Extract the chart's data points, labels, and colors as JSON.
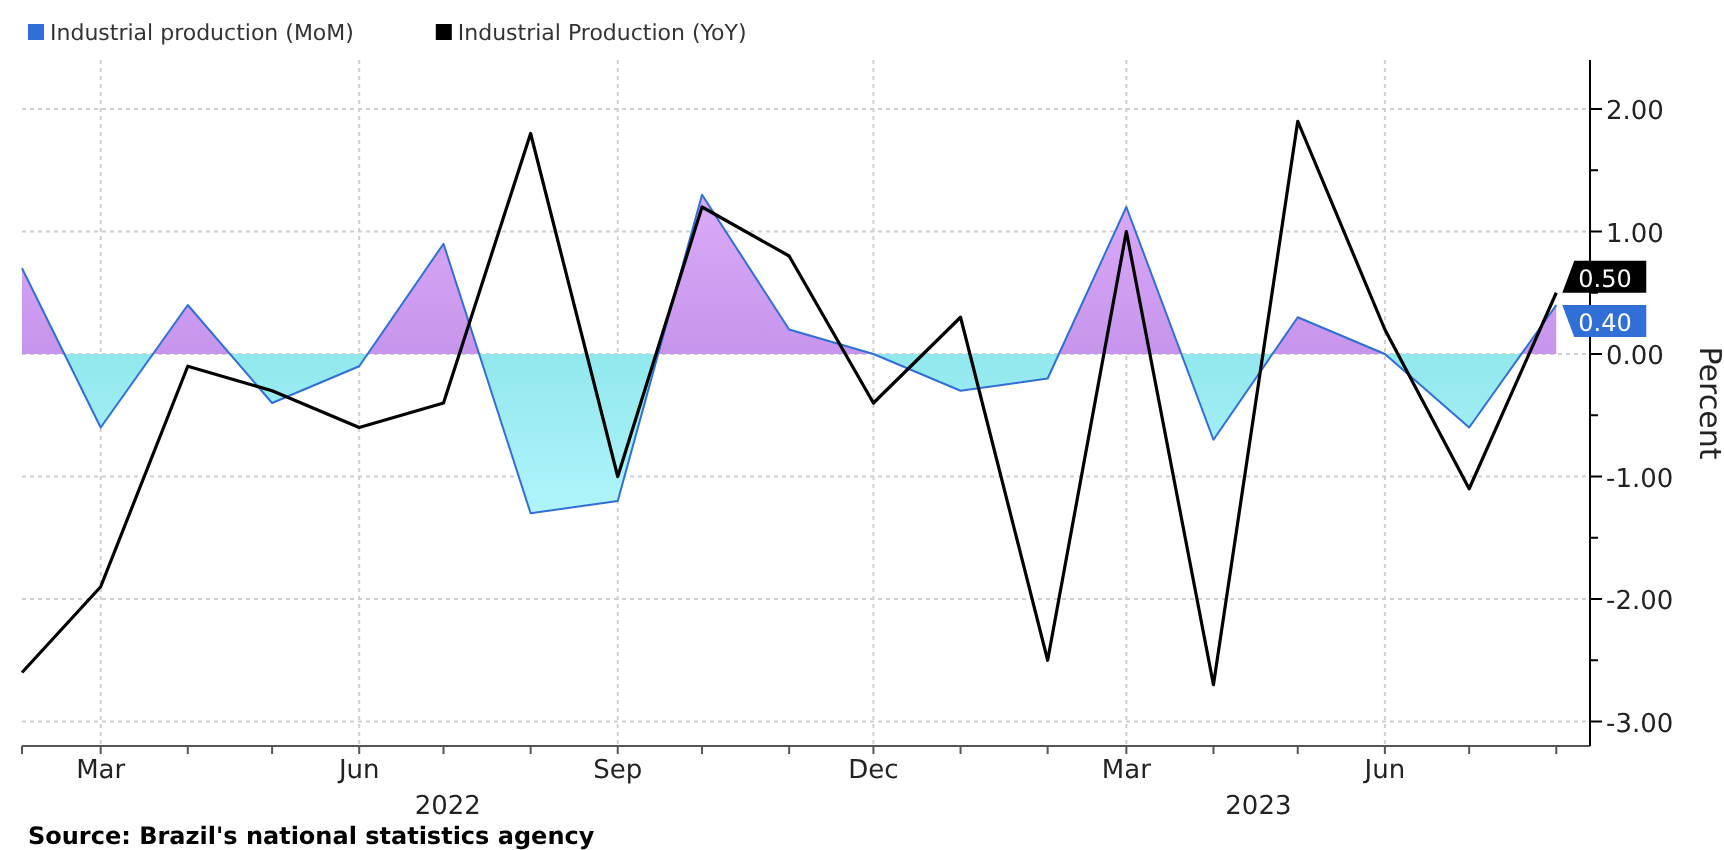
{
  "chart_data": {
    "type": "line",
    "legend": "top left",
    "grid": true,
    "ylabel": "Percent",
    "x": [
      "2022-02",
      "2022-03",
      "2022-04",
      "2022-05",
      "2022-06",
      "2022-07",
      "2022-08",
      "2022-09",
      "2022-10",
      "2022-11",
      "2022-12",
      "2023-01",
      "2023-02",
      "2023-03",
      "2023-04",
      "2023-05",
      "2023-06",
      "2023-07",
      "2023-08"
    ],
    "xlim": [
      "2022-02",
      "2023-08-13"
    ],
    "xticks": [
      {
        "value": "2022-02",
        "label": null
      },
      {
        "value": "2022-03",
        "label": "Mar"
      },
      {
        "value": "2022-04",
        "label": null
      },
      {
        "value": "2022-05",
        "label": null
      },
      {
        "value": "2022-06",
        "label": "Jun"
      },
      {
        "value": "2022-07",
        "label": null
      },
      {
        "value": "2022-08",
        "label": null
      },
      {
        "value": "2022-09",
        "label": "Sep"
      },
      {
        "value": "2022-10",
        "label": null
      },
      {
        "value": "2022-11",
        "label": null
      },
      {
        "value": "2022-12",
        "label": "Dec"
      },
      {
        "value": "2023-01",
        "label": null
      },
      {
        "value": "2023-02",
        "label": null
      },
      {
        "value": "2023-03",
        "label": "Mar"
      },
      {
        "value": "2023-04",
        "label": null
      },
      {
        "value": "2023-05",
        "label": null
      },
      {
        "value": "2023-06",
        "label": "Jun"
      },
      {
        "value": "2023-07",
        "label": null
      },
      {
        "value": "2023-08",
        "label": null
      }
    ],
    "ylim": [
      -3.2,
      2.4
    ],
    "yticks": [
      {
        "value": 2,
        "label": "2.00"
      },
      {
        "value": 1.5,
        "label": null
      },
      {
        "value": 1,
        "label": "1.00"
      },
      {
        "value": 0.5,
        "label": null
      },
      {
        "value": 0,
        "label": "0.00"
      },
      {
        "value": -0.5,
        "label": null
      },
      {
        "value": -1,
        "label": "-1.00"
      },
      {
        "value": -1.5,
        "label": null
      },
      {
        "value": -2,
        "label": "-2.00"
      },
      {
        "value": -2.5,
        "label": null
      },
      {
        "value": -3,
        "label": "-3.00"
      }
    ],
    "series": [
      {
        "name": "Industrial production (MoM)",
        "type": "area",
        "color": "#2f6fd6",
        "values": [
          0.7,
          -0.6,
          0.4,
          -0.4,
          -0.1,
          0.9,
          -1.3,
          -1.2,
          1.3,
          0.2,
          0.0,
          -0.3,
          -0.2,
          1.2,
          -0.7,
          0.3,
          0.0,
          -0.6,
          0.4
        ],
        "value_labels": [
          null,
          null,
          null,
          null,
          null,
          null,
          null,
          null,
          null,
          null,
          null,
          null,
          null,
          null,
          null,
          null,
          null,
          null,
          "0.40"
        ]
      },
      {
        "name": "Industrial Production (YoY)",
        "color": "#000000",
        "values": [
          -2.6,
          -1.9,
          -0.1,
          -0.3,
          -0.6,
          -0.4,
          1.8,
          -1.0,
          1.2,
          0.8,
          -0.4,
          0.3,
          -2.5,
          1.0,
          -2.7,
          1.9,
          0.2,
          -1.1,
          0.5
        ],
        "value_labels": [
          null,
          null,
          null,
          null,
          null,
          null,
          null,
          null,
          null,
          null,
          null,
          null,
          null,
          null,
          null,
          null,
          null,
          null,
          "0.50"
        ]
      }
    ],
    "annotations": [
      "2022",
      "2023",
      "Source: Brazil's national statistics agency"
    ]
  }
}
